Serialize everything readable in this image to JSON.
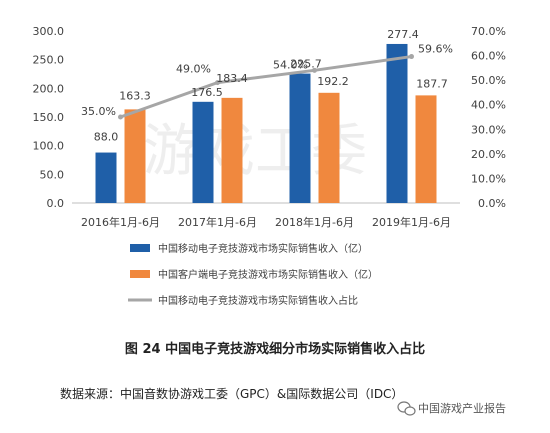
{
  "chart_data": {
    "type": "bar",
    "categories": [
      "2016年1月-6月",
      "2017年1月-6月",
      "2018年1月-6月",
      "2019年1月-6月"
    ],
    "series": [
      {
        "name": "中国移动电子竞技游戏市场实际销售收入（亿）",
        "type": "bar",
        "axis": "left",
        "color": "#1f5fa8",
        "values": [
          88.0,
          176.5,
          225.7,
          277.4
        ]
      },
      {
        "name": "中国客户端电子竞技游戏市场实际销售收入（亿）",
        "type": "bar",
        "axis": "left",
        "color": "#f0883e",
        "values": [
          163.3,
          183.4,
          192.2,
          187.7
        ]
      },
      {
        "name": "中国移动电子竞技游戏市场实际销售收入占比",
        "type": "line",
        "axis": "right",
        "color": "#a6a6a6",
        "values": [
          35.0,
          49.0,
          54.0,
          59.6
        ]
      }
    ],
    "value_labels": {
      "bars_a": [
        "88.0",
        "176.5",
        "225.7",
        "277.4"
      ],
      "bars_b": [
        "163.3",
        "183.4",
        "192.2",
        "187.7"
      ],
      "line": [
        "35.0%",
        "49.0%",
        "54.0%",
        "59.6%"
      ]
    },
    "y_left": {
      "ylim": [
        0,
        300
      ],
      "ticks": [
        "0.0",
        "50.0",
        "100.0",
        "150.0",
        "200.0",
        "250.0",
        "300.0"
      ]
    },
    "y_right": {
      "ylim": [
        0,
        70
      ],
      "ticks": [
        "0.0%",
        "10.0%",
        "20.0%",
        "30.0%",
        "40.0%",
        "50.0%",
        "60.0%",
        "70.0%"
      ]
    },
    "grid": false,
    "legend_position": "bottom"
  },
  "watermark_text": "游戏工委",
  "caption": "图 24  中国电子竞技游戏细分市场实际销售收入占比",
  "source": "数据来源：中国音数协游戏工委（GPC）&国际数据公司（IDC）",
  "wechat_tag": "中国游戏产业报告",
  "icons": {
    "wechat": "wechat-icon"
  }
}
